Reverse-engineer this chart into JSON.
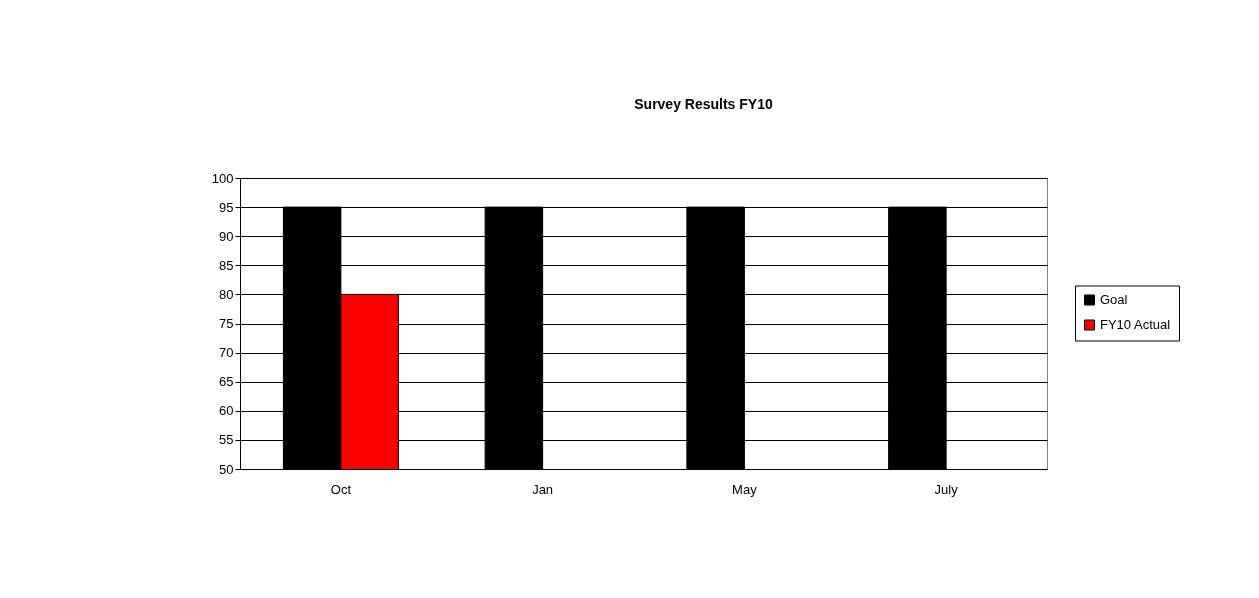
{
  "chart_data": {
    "type": "bar",
    "title": "Survey Results FY10",
    "categories": [
      "Oct",
      "Jan",
      "May",
      "July"
    ],
    "series": [
      {
        "name": "Goal",
        "color": "#000000",
        "values": [
          95,
          95,
          95,
          95
        ]
      },
      {
        "name": "FY10 Actual",
        "color": "#ff0000",
        "values": [
          80,
          null,
          null,
          null
        ]
      }
    ],
    "ylim": [
      50,
      100
    ],
    "yticks": [
      50,
      55,
      60,
      65,
      70,
      75,
      80,
      85,
      90,
      95,
      100
    ],
    "grid": "y",
    "legend": "right"
  }
}
